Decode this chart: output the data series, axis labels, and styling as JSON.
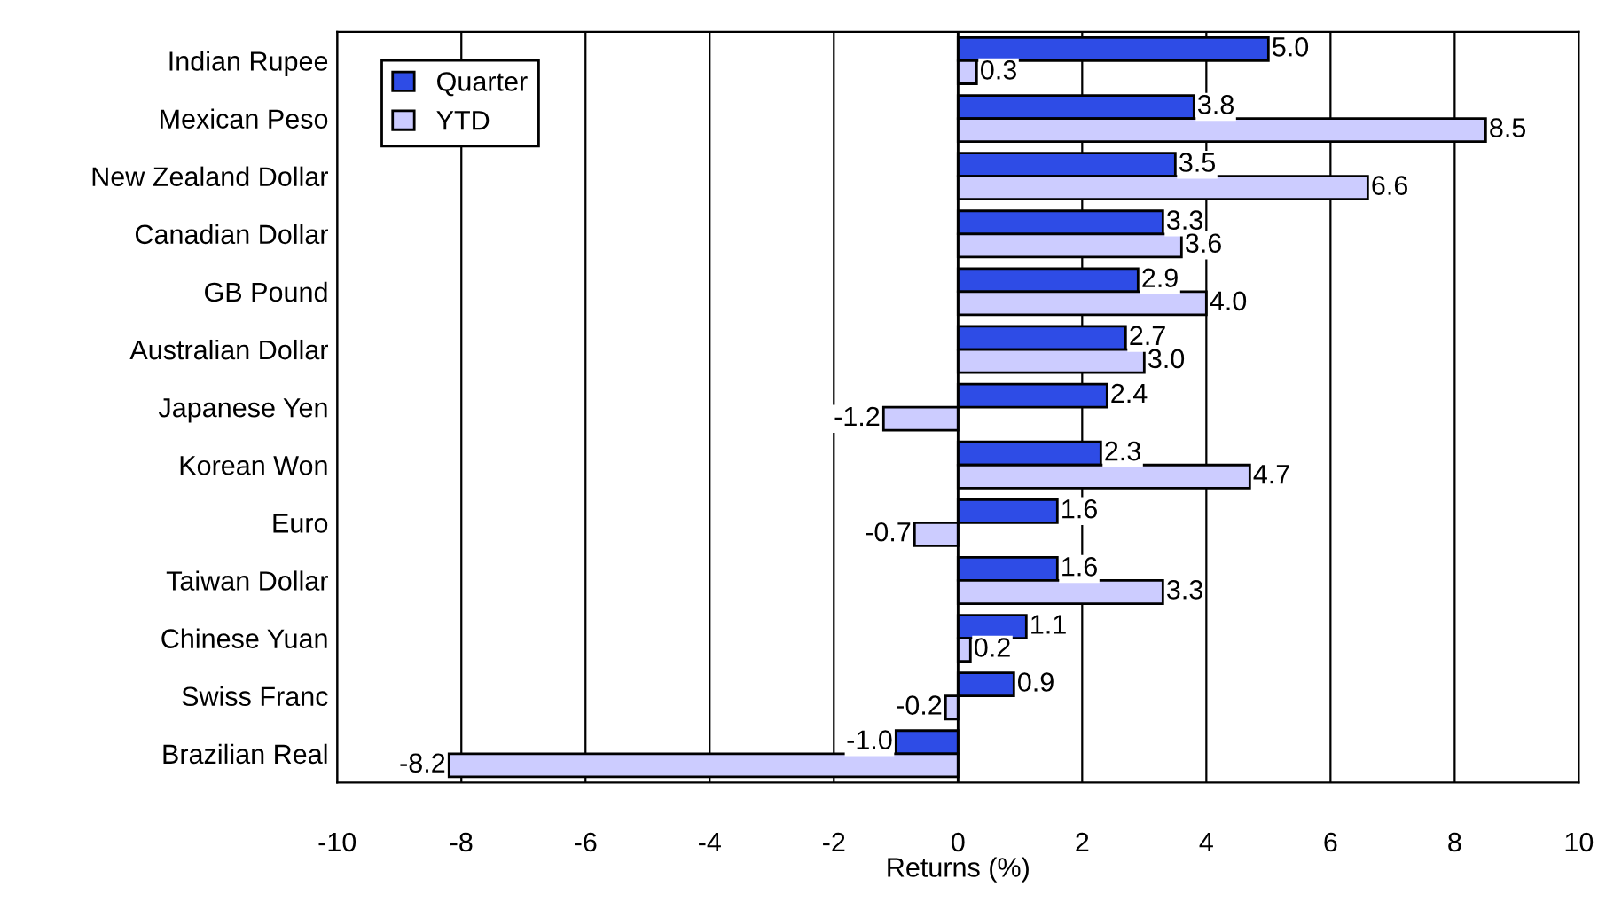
{
  "chart_data": {
    "type": "bar",
    "orientation": "horizontal",
    "xlabel": "Returns (%)",
    "categories": [
      "Indian Rupee",
      "Mexican Peso",
      "New Zealand Dollar",
      "Canadian Dollar",
      "GB Pound",
      "Australian Dollar",
      "Japanese Yen",
      "Korean Won",
      "Euro",
      "Taiwan Dollar",
      "Chinese Yuan",
      "Swiss Franc",
      "Brazilian Real"
    ],
    "series": [
      {
        "name": "Quarter",
        "color": "#2e4ce6",
        "values": [
          5.0,
          3.8,
          3.5,
          3.3,
          2.9,
          2.7,
          2.4,
          2.3,
          1.6,
          1.6,
          1.1,
          0.9,
          -1.0
        ],
        "value_labels": [
          "5.0",
          "3.8",
          "3.5",
          "3.3",
          "2.9",
          "2.7",
          "2.4",
          "2.3",
          "1.6",
          "1.6",
          "1.1",
          "0.9",
          "-1.0"
        ]
      },
      {
        "name": "YTD",
        "color": "#ccccff",
        "values": [
          0.3,
          8.5,
          6.6,
          3.6,
          4.0,
          3.0,
          -1.2,
          4.7,
          -0.7,
          3.3,
          0.2,
          -0.2,
          -8.2
        ],
        "value_labels": [
          "0.3",
          "8.5",
          "6.6",
          "3.6",
          "4.0",
          "3.0",
          "-1.2",
          "4.7",
          "-0.7",
          "3.3",
          "0.2",
          "-0.2",
          "-8.2"
        ]
      }
    ],
    "xlim": [
      -10,
      10
    ],
    "xticks": [
      -10,
      -8,
      -6,
      -4,
      -2,
      0,
      2,
      4,
      6,
      8,
      10
    ],
    "grid": "x",
    "legend": "top left"
  }
}
